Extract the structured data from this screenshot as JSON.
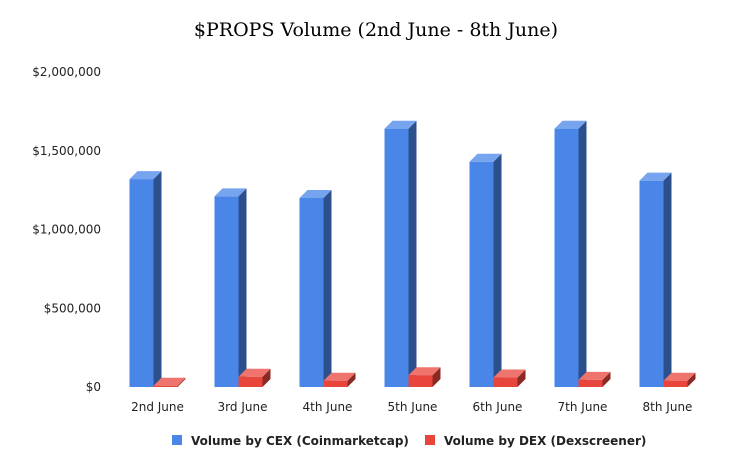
{
  "chart_data": {
    "type": "bar",
    "title": "$PROPS Volume (2nd June - 8th June)",
    "xlabel": "",
    "ylabel": "",
    "categories": [
      "2nd June",
      "3rd June",
      "4th June",
      "5th June",
      "6th June",
      "7th June",
      "8th June"
    ],
    "series": [
      {
        "name": "Volume by CEX (Coinmarketcap)",
        "color": "#4a86e8",
        "values": [
          1320000,
          1210000,
          1200000,
          1640000,
          1430000,
          1640000,
          1310000
        ]
      },
      {
        "name": "Volume by DEX (Dexscreener)",
        "color": "#e8453c",
        "values": [
          8000,
          65000,
          40000,
          75000,
          60000,
          45000,
          40000
        ]
      }
    ],
    "ylim": [
      0,
      2000000
    ],
    "yticks": [
      0,
      500000,
      1000000,
      1500000,
      2000000
    ],
    "ytick_labels": [
      "$0",
      "$500,000",
      "$1,000,000",
      "$1,500,000",
      "$2,000,000"
    ],
    "grid": false,
    "bar_style": "3d",
    "legend_position": "bottom"
  }
}
